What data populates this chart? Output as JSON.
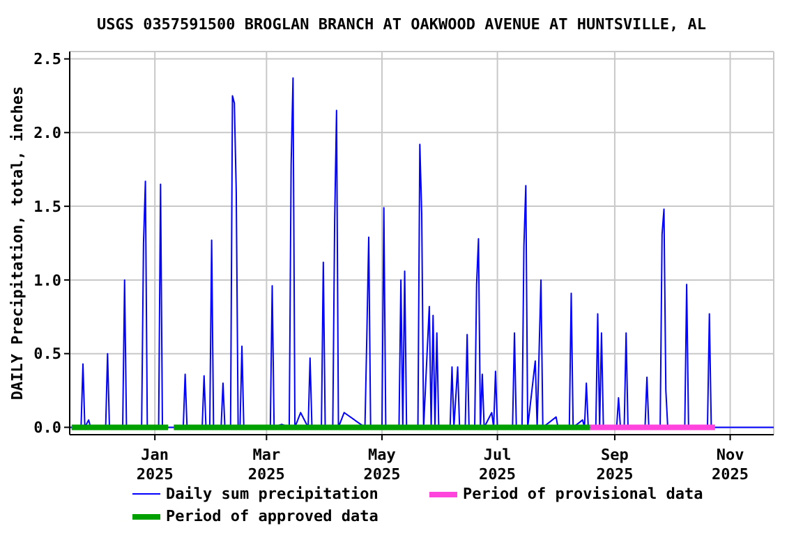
{
  "chart_data": {
    "type": "line",
    "title": "USGS 0357591500 BROGLAN BRANCH AT OAKWOOD AVENUE AT HUNTSVILLE, AL",
    "ylabel": "DAILY Precipitation, total, inches",
    "xlim": [
      "2024-11-17",
      "2025-11-24"
    ],
    "xticks": [
      {
        "value": "2025-01-01",
        "label": "Jan\n2025"
      },
      {
        "value": "2025-03-01",
        "label": "Mar\n2025"
      },
      {
        "value": "2025-05-01",
        "label": "May\n2025"
      },
      {
        "value": "2025-07-01",
        "label": "Jul\n2025"
      },
      {
        "value": "2025-09-01",
        "label": "Sep\n2025"
      },
      {
        "value": "2025-11-01",
        "label": "Nov\n2025"
      }
    ],
    "ylim": [
      -0.05,
      2.55
    ],
    "yticks": [
      {
        "value": 0,
        "label": "0.0"
      },
      {
        "value": 0.5,
        "label": "0.5"
      },
      {
        "value": 1,
        "label": "1.0"
      },
      {
        "value": 1.5,
        "label": "1.5"
      },
      {
        "value": 2,
        "label": "2.0"
      },
      {
        "value": 2.5,
        "label": "2.5"
      }
    ],
    "grid": true,
    "legend": "bottom",
    "marker": "none",
    "line_style": "solid",
    "series": [
      {
        "name": "Daily sum precipitation",
        "color": "#0000ff",
        "x": [
          "2024-11-17",
          "2024-11-23",
          "2024-11-24",
          "2024-11-25",
          "2024-11-27",
          "2024-11-28",
          "2024-12-06",
          "2024-12-07",
          "2024-12-08",
          "2024-12-15",
          "2024-12-16",
          "2024-12-17",
          "2024-12-25",
          "2024-12-26",
          "2024-12-27",
          "2024-12-28",
          "2025-01-03",
          "2025-01-04",
          "2025-01-05",
          "2025-01-16",
          "2025-01-17",
          "2025-01-18",
          "2025-01-26",
          "2025-01-27",
          "2025-01-28",
          "2025-01-30",
          "2025-01-31",
          "2025-02-01",
          "2025-02-05",
          "2025-02-06",
          "2025-02-07",
          "2025-02-10",
          "2025-02-11",
          "2025-02-12",
          "2025-02-13",
          "2025-02-14",
          "2025-02-15",
          "2025-02-16",
          "2025-02-17",
          "2025-03-03",
          "2025-03-04",
          "2025-03-05",
          "2025-03-09",
          "2025-03-13",
          "2025-03-14",
          "2025-03-15",
          "2025-03-16",
          "2025-03-19",
          "2025-03-23",
          "2025-03-24",
          "2025-03-25",
          "2025-03-30",
          "2025-03-31",
          "2025-04-01",
          "2025-04-05",
          "2025-04-06",
          "2025-04-07",
          "2025-04-08",
          "2025-04-11",
          "2025-04-22",
          "2025-04-23",
          "2025-04-24",
          "2025-04-25",
          "2025-05-01",
          "2025-05-02",
          "2025-05-03",
          "2025-05-10",
          "2025-05-11",
          "2025-05-12",
          "2025-05-13",
          "2025-05-14",
          "2025-05-20",
          "2025-05-21",
          "2025-05-22",
          "2025-05-23",
          "2025-05-26",
          "2025-05-27",
          "2025-05-28",
          "2025-05-29",
          "2025-05-30",
          "2025-05-31",
          "2025-06-06",
          "2025-06-07",
          "2025-06-08",
          "2025-06-10",
          "2025-06-11",
          "2025-06-14",
          "2025-06-15",
          "2025-06-16",
          "2025-06-19",
          "2025-06-20",
          "2025-06-21",
          "2025-06-22",
          "2025-06-23",
          "2025-06-24",
          "2025-06-28",
          "2025-06-29",
          "2025-06-30",
          "2025-07-01",
          "2025-07-09",
          "2025-07-10",
          "2025-07-11",
          "2025-07-14",
          "2025-07-15",
          "2025-07-16",
          "2025-07-17",
          "2025-07-21",
          "2025-07-22",
          "2025-07-24",
          "2025-07-25",
          "2025-08-01",
          "2025-08-02",
          "2025-08-08",
          "2025-08-09",
          "2025-08-10",
          "2025-08-15",
          "2025-08-16",
          "2025-08-17",
          "2025-08-18",
          "2025-08-22",
          "2025-08-23",
          "2025-08-24",
          "2025-08-25",
          "2025-08-26",
          "2025-09-02",
          "2025-09-03",
          "2025-09-04",
          "2025-09-06",
          "2025-09-07",
          "2025-09-08",
          "2025-09-17",
          "2025-09-18",
          "2025-09-19",
          "2025-09-25",
          "2025-09-26",
          "2025-09-27",
          "2025-09-28",
          "2025-09-29",
          "2025-10-08",
          "2025-10-09",
          "2025-10-10",
          "2025-10-20",
          "2025-10-21",
          "2025-10-22",
          "2025-11-24"
        ],
        "values": [
          0,
          0,
          0.43,
          0,
          0.05,
          0,
          0,
          0.5,
          0,
          0,
          1.0,
          0,
          0,
          1.25,
          1.67,
          0,
          0,
          1.65,
          0,
          0,
          0.36,
          0,
          0,
          0.35,
          0,
          0,
          1.27,
          0,
          0,
          0.3,
          0,
          0,
          2.25,
          2.2,
          1.6,
          0,
          0,
          0.55,
          0,
          0,
          0.96,
          0,
          0.02,
          0,
          1.78,
          2.37,
          0,
          0.1,
          0,
          0.47,
          0,
          0,
          1.12,
          0,
          0,
          1.4,
          2.15,
          0,
          0.1,
          0,
          0.62,
          1.29,
          0,
          0,
          1.49,
          0,
          0,
          1.0,
          0,
          1.06,
          0,
          0,
          1.92,
          1.45,
          0,
          0.82,
          0,
          0.76,
          0,
          0.64,
          0,
          0,
          0.41,
          0,
          0.41,
          0,
          0,
          0.63,
          0,
          0,
          0.97,
          1.28,
          0,
          0.36,
          0,
          0.1,
          0,
          0.38,
          0,
          0,
          0.64,
          0,
          0,
          1.23,
          1.64,
          0,
          0.45,
          0,
          1.0,
          0,
          0.07,
          0,
          0,
          0.91,
          0,
          0.05,
          0,
          0.3,
          0,
          0,
          0.77,
          0,
          0.64,
          0,
          0,
          0.2,
          0,
          0,
          0.64,
          0,
          0,
          0.34,
          0,
          0,
          1.31,
          1.48,
          0.25,
          0,
          0,
          0.97,
          0,
          0,
          0.77,
          0,
          0
        ]
      },
      {
        "name": "Period of approved data",
        "color": "#00a000",
        "x": [
          "2024-11-18",
          "2025-01-08",
          "2025-01-09",
          "2025-01-11",
          "2025-08-19"
        ],
        "values": [
          0,
          0,
          null,
          0,
          0
        ]
      },
      {
        "name": "Period of provisional data",
        "color": "#ff44dd",
        "x": [
          "2025-08-19",
          "2025-10-24"
        ],
        "values": [
          0,
          0
        ]
      }
    ]
  }
}
